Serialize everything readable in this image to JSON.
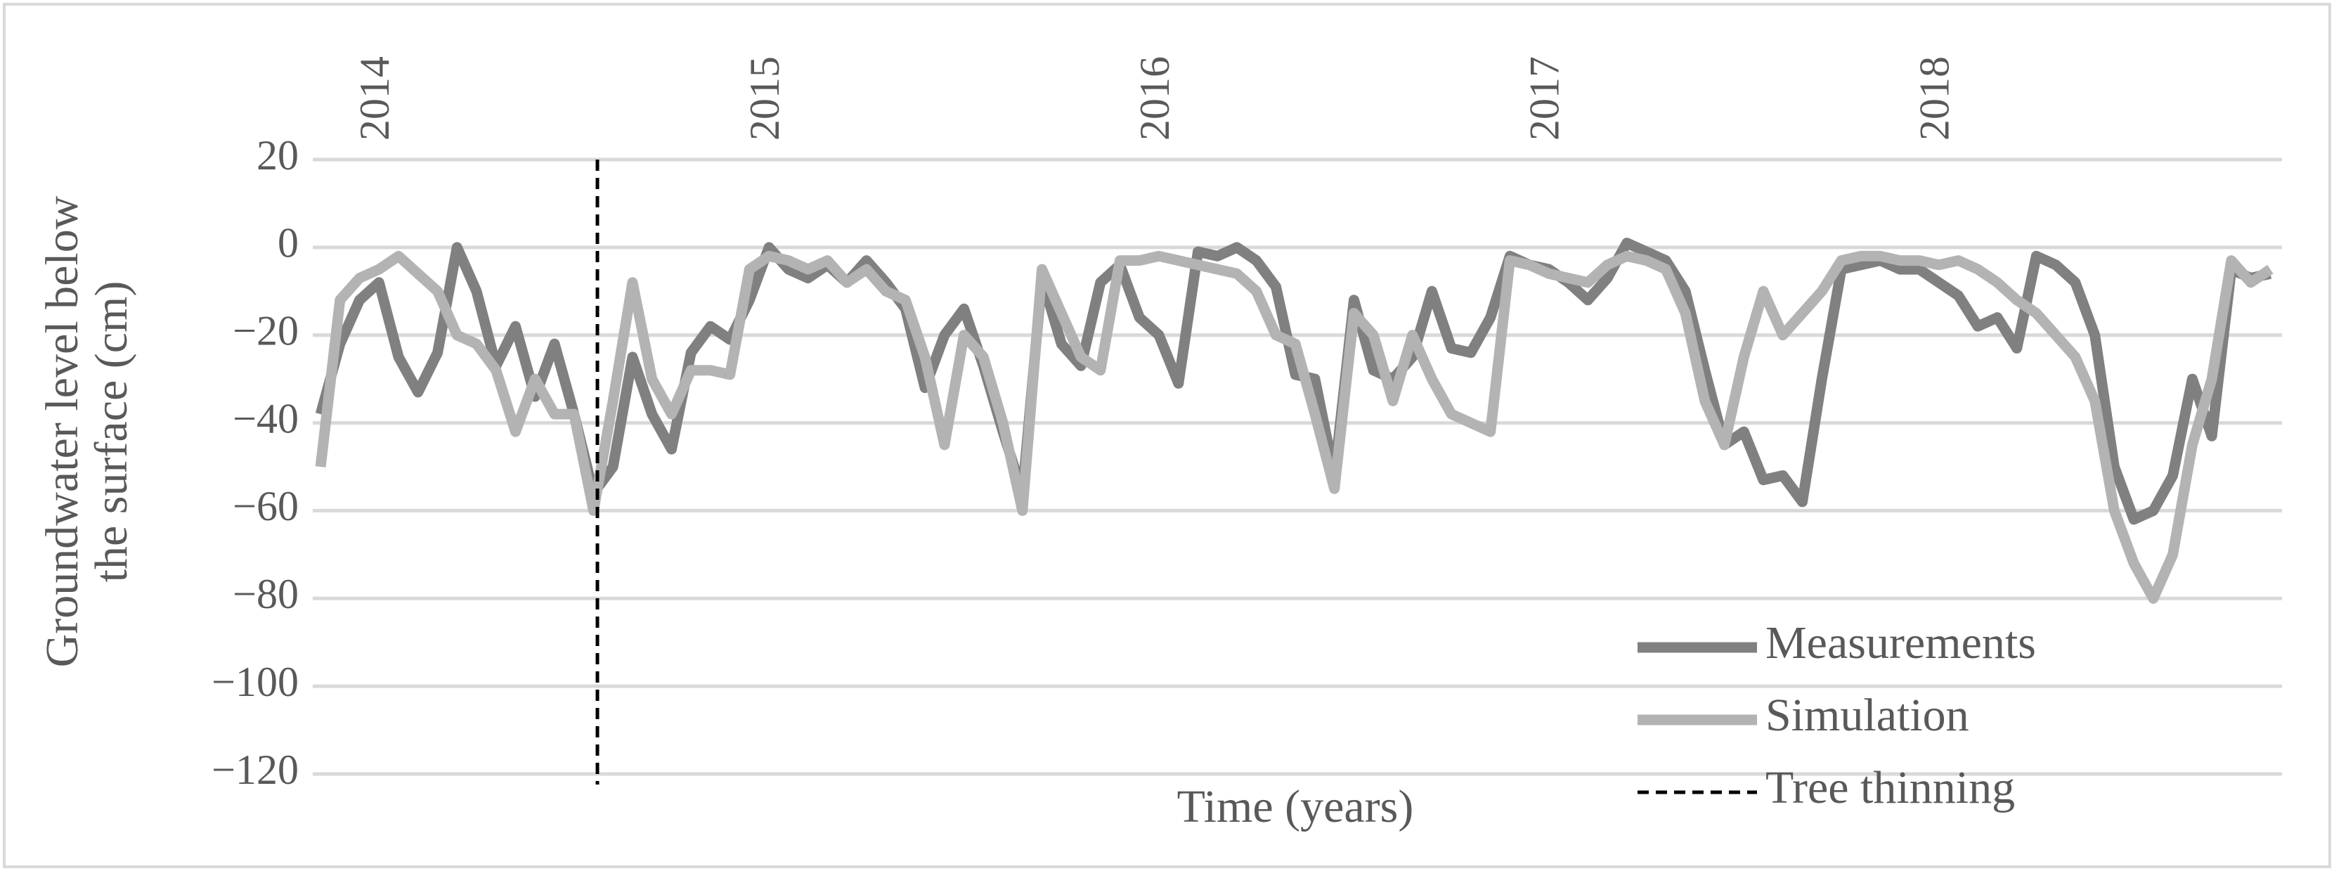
{
  "chart_data": {
    "type": "line",
    "xlabel": "Time (years)",
    "ylabel": [
      "Groundwater level below",
      "the surface (cm)"
    ],
    "x": [
      2013.85,
      2013.9,
      2013.95,
      2014.0,
      2014.05,
      2014.1,
      2014.15,
      2014.2,
      2014.25,
      2014.3,
      2014.35,
      2014.4,
      2014.45,
      2014.5,
      2014.55,
      2014.6,
      2014.65,
      2014.7,
      2014.75,
      2014.8,
      2014.85,
      2014.9,
      2014.95,
      2015.0,
      2015.05,
      2015.1,
      2015.15,
      2015.2,
      2015.25,
      2015.3,
      2015.35,
      2015.4,
      2015.45,
      2015.5,
      2015.55,
      2015.6,
      2015.65,
      2015.7,
      2015.75,
      2015.8,
      2015.85,
      2015.9,
      2015.95,
      2016.0,
      2016.05,
      2016.1,
      2016.15,
      2016.2,
      2016.25,
      2016.3,
      2016.35,
      2016.4,
      2016.45,
      2016.5,
      2016.55,
      2016.6,
      2016.65,
      2016.7,
      2016.75,
      2016.8,
      2016.85,
      2016.9,
      2016.95,
      2017.0,
      2017.05,
      2017.1,
      2017.15,
      2017.2,
      2017.25,
      2017.3,
      2017.35,
      2017.4,
      2017.45,
      2017.5,
      2017.55,
      2017.6,
      2017.65,
      2017.7,
      2017.75,
      2017.8,
      2017.85,
      2017.9,
      2017.95,
      2018.0,
      2018.05,
      2018.1,
      2018.15,
      2018.2,
      2018.25,
      2018.3,
      2018.35,
      2018.4,
      2018.45,
      2018.5,
      2018.55,
      2018.6,
      2018.65,
      2018.7,
      2018.75,
      2018.8,
      2018.85
    ],
    "series": [
      {
        "name": "Measurements",
        "color": "#808080",
        "values": [
          -38,
          -22,
          -12,
          -8,
          -25,
          -33,
          -24,
          0,
          -10,
          -27,
          -18,
          -34,
          -22,
          -38,
          -56,
          -50,
          -25,
          -38,
          -46,
          -24,
          -18,
          -21,
          -12,
          0,
          -5,
          -7,
          -4,
          -8,
          -3,
          -8,
          -14,
          -32,
          -20,
          -14,
          -27,
          -42,
          -56,
          -7,
          -22,
          -27,
          -8,
          -4,
          -16,
          -20,
          -31,
          -1,
          -2,
          0,
          -3,
          -9,
          -29,
          -30,
          -52,
          -12,
          -28,
          -30,
          -25,
          -10,
          -23,
          -24,
          -16,
          -2,
          -4,
          -5,
          -8,
          -12,
          -7,
          1,
          -1,
          -3,
          -10,
          -28,
          -45,
          -42,
          -53,
          -52,
          -58,
          -30,
          -5,
          -4,
          -3,
          -5,
          -5,
          -8,
          -11,
          -18,
          -16,
          -23,
          -2,
          -4,
          -8,
          -20,
          -50,
          -62,
          -60,
          -52,
          -30,
          -43,
          -5,
          -7,
          -6
        ]
      },
      {
        "name": "Simulation",
        "color": "#b3b3b3",
        "values": [
          -50,
          -12,
          -7,
          -5,
          -2,
          -6,
          -10,
          -20,
          -22,
          -28,
          -42,
          -30,
          -38,
          -38,
          -60,
          -35,
          -8,
          -30,
          -38,
          -28,
          -28,
          -29,
          -5,
          -2,
          -3,
          -5,
          -3,
          -8,
          -5,
          -10,
          -12,
          -25,
          -45,
          -20,
          -25,
          -40,
          -60,
          -5,
          -15,
          -25,
          -28,
          -3,
          -3,
          -2,
          -3,
          -4,
          -5,
          -6,
          -10,
          -20,
          -22,
          -38,
          -55,
          -15,
          -20,
          -35,
          -20,
          -30,
          -38,
          -40,
          -42,
          -3,
          -4,
          -6,
          -7,
          -8,
          -4,
          -2,
          -3,
          -5,
          -15,
          -35,
          -45,
          -25,
          -10,
          -20,
          -15,
          -10,
          -3,
          -2,
          -2,
          -3,
          -3,
          -4,
          -3,
          -5,
          -8,
          -12,
          -15,
          -20,
          -25,
          -35,
          -60,
          -72,
          -80,
          -70,
          -45,
          -30,
          -3,
          -8,
          -5
        ]
      }
    ],
    "vlines": [
      {
        "name": "Tree thinning",
        "x": 2014.56,
        "color": "#000000"
      }
    ],
    "xlim": [
      2013.83,
      2018.88
    ],
    "xticks": [
      2014,
      2015,
      2016,
      2017,
      2018
    ],
    "ylim": [
      -120,
      20
    ],
    "yticks": [
      {
        "value": -120,
        "label": "−120"
      },
      {
        "value": -100,
        "label": "−100"
      },
      {
        "value": -80,
        "label": "−80"
      },
      {
        "value": -60,
        "label": "−60"
      },
      {
        "value": -40,
        "label": "−40"
      },
      {
        "value": -20,
        "label": "−20"
      },
      0,
      20
    ],
    "grid": true,
    "legend": "bottom-right"
  }
}
